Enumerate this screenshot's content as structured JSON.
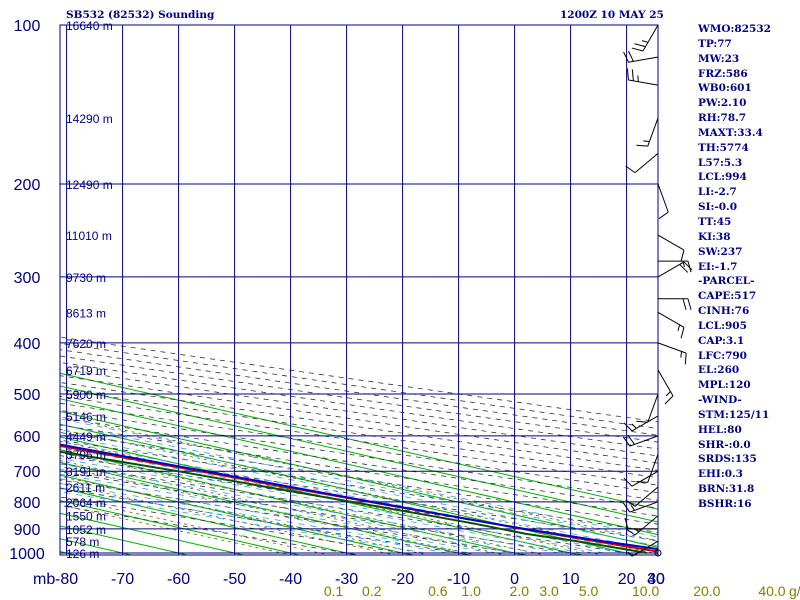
{
  "header": {
    "title": "SB532 (82532) Sounding",
    "time": "1200Z 10 MAY 25"
  },
  "indices": [
    "WMO:82532",
    "TP:77",
    "MW:23",
    "FRZ:586",
    "WB0:601",
    "PW:2.10",
    "RH:78.7",
    "MAXT:33.4",
    "TH:5774",
    "L57:5.3",
    "LCL:994",
    "LI:-2.7",
    "SI:-0.0",
    "TT:45",
    "KI:38",
    "SW:237",
    "EI:-1.7",
    "-PARCEL-",
    "CAPE:517",
    "CINH:76",
    "LCL:905",
    "CAP:3.1",
    "LFC:790",
    "EL:260",
    "MPL:120",
    "-WIND-",
    "STM:125/11",
    "HEL:80",
    "SHR-:0.0",
    "SRDS:135",
    "EHI:0.3",
    "BRN:31.8",
    "BSHR:16"
  ],
  "colors": {
    "frame": "#000080",
    "isotherm": "#00b000",
    "dry_adiabat": "#333333",
    "moist_adiabat": "#3aa0e0",
    "mixing_ratio": "#666600",
    "temperature": "#cc0000",
    "dewpoint": "#005000",
    "parcel": "#0000cc",
    "wind_barb": "#000000"
  },
  "chart_data": {
    "type": "skew-t",
    "title": "SB532 (82532) Sounding",
    "pressure_unit_label": "mb",
    "pressure_ticks": [
      100,
      200,
      300,
      400,
      500,
      600,
      700,
      800,
      900,
      1000
    ],
    "temperature_ticks": [
      -80,
      -70,
      -60,
      -50,
      -40,
      -30,
      -20,
      -10,
      0,
      10,
      20,
      30,
      40
    ],
    "temperature_tick_labels": [
      "-80",
      "-70",
      "-60",
      "-50",
      "-40",
      "-30",
      "-20",
      "-10",
      "0",
      "10",
      "20",
      "30",
      "40"
    ],
    "pressure_range": [
      100,
      1050
    ],
    "temperature_range_at_surface": [
      -80,
      40
    ],
    "height_labels": [
      {
        "p": 100,
        "text": "16640 m"
      },
      {
        "p": 150,
        "text": "14290 m"
      },
      {
        "p": 200,
        "text": "12490 m"
      },
      {
        "p": 250,
        "text": "11010 m"
      },
      {
        "p": 300,
        "text": "9730 m"
      },
      {
        "p": 350,
        "text": "8613 m"
      },
      {
        "p": 400,
        "text": "7620 m"
      },
      {
        "p": 450,
        "text": "6719 m"
      },
      {
        "p": 500,
        "text": "5900 m"
      },
      {
        "p": 550,
        "text": "5146 m"
      },
      {
        "p": 600,
        "text": "4449 m"
      },
      {
        "p": 650,
        "text": "3796 m"
      },
      {
        "p": 700,
        "text": "3191 m"
      },
      {
        "p": 750,
        "text": "2611 m"
      },
      {
        "p": 800,
        "text": "2064 m"
      },
      {
        "p": 850,
        "text": "1550 m"
      },
      {
        "p": 900,
        "text": "1052 m"
      },
      {
        "p": 950,
        "text": "578 m"
      },
      {
        "p": 1000,
        "text": "126 m"
      }
    ],
    "mixing_ratio_values": [
      0.1,
      0.2,
      0.6,
      1.0,
      2.0,
      3.0,
      5.0,
      10.0,
      20.0,
      40.0
    ],
    "mixing_ratio_labels": [
      "0.1",
      "0.2",
      "0.6",
      "1.0",
      "2.0",
      "3.0",
      "5.0",
      "10.0",
      "20.0",
      "40.0"
    ],
    "mixing_ratio_unit": "g/kg",
    "series": [
      {
        "key": "temperature",
        "points": [
          [
            1000,
            27.1
          ],
          [
            950,
            23.6
          ],
          [
            900,
            20.3
          ],
          [
            850,
            17.4
          ],
          [
            800,
            14.2
          ],
          [
            750,
            10.9
          ],
          [
            700,
            8.0
          ],
          [
            650,
            4.5
          ],
          [
            600,
            1.1
          ],
          [
            550,
            -2.4
          ],
          [
            500,
            -6.4
          ],
          [
            450,
            -11.8
          ],
          [
            400,
            -17.0
          ],
          [
            350,
            -23.6
          ],
          [
            300,
            -31.8
          ],
          [
            250,
            -41.4
          ],
          [
            200,
            -52.6
          ],
          [
            150,
            -66.4
          ],
          [
            120,
            -77.0
          ],
          [
            100,
            -78.0
          ]
        ]
      },
      {
        "key": "dewpoint",
        "points": [
          [
            1000,
            23.6
          ],
          [
            950,
            20.4
          ],
          [
            920,
            17.1
          ],
          [
            880,
            15.9
          ],
          [
            850,
            14.2
          ],
          [
            800,
            11.0
          ],
          [
            750,
            7.6
          ],
          [
            700,
            4.1
          ],
          [
            660,
            0.2
          ],
          [
            620,
            -4.2
          ],
          [
            600,
            -5.0
          ],
          [
            580,
            -6.8
          ],
          [
            560,
            -3.8
          ],
          [
            550,
            -6.0
          ],
          [
            545,
            -15.0
          ],
          [
            540,
            -8.0
          ],
          [
            535,
            -14.0
          ],
          [
            530,
            -9.0
          ],
          [
            520,
            -17.0
          ],
          [
            510,
            -9.0
          ],
          [
            500,
            -13.0
          ],
          [
            485,
            -7.0
          ],
          [
            480,
            -14.0
          ],
          [
            475,
            -10.0
          ],
          [
            470,
            -13.0
          ],
          [
            455,
            -14.5
          ],
          [
            450,
            -34.0
          ],
          [
            440,
            -36.0
          ],
          [
            420,
            -38.0
          ],
          [
            410,
            -28.0
          ],
          [
            400,
            -40.0
          ],
          [
            390,
            -31.0
          ],
          [
            385,
            -43.0
          ],
          [
            375,
            -27.0
          ],
          [
            370,
            -41.0
          ],
          [
            360,
            -36.0
          ],
          [
            355,
            -45.0
          ],
          [
            345,
            -40.0
          ],
          [
            340,
            -48.0
          ],
          [
            330,
            -43.0
          ],
          [
            320,
            -49.0
          ],
          [
            300,
            -56.0
          ],
          [
            290,
            -47.0
          ],
          [
            280,
            -51.0
          ],
          [
            270,
            -49.0
          ],
          [
            260,
            -53.0
          ],
          [
            250,
            -54.0
          ],
          [
            220,
            -58.0
          ],
          [
            200,
            -60.0
          ],
          [
            185,
            -65.0
          ],
          [
            170,
            -72.0
          ],
          [
            160,
            -82.0
          ],
          [
            150,
            -80.0
          ],
          [
            135,
            -87.0
          ],
          [
            120,
            -90.0
          ],
          [
            110,
            -92.0
          ]
        ]
      },
      {
        "key": "parcel",
        "points": [
          [
            1000,
            30.5
          ],
          [
            950,
            25.0
          ],
          [
            900,
            20.6
          ],
          [
            850,
            17.6
          ],
          [
            800,
            14.7
          ],
          [
            750,
            11.9
          ],
          [
            700,
            9.0
          ],
          [
            650,
            5.9
          ],
          [
            600,
            2.5
          ],
          [
            550,
            -1.2
          ],
          [
            500,
            -5.4
          ],
          [
            450,
            -10.2
          ],
          [
            400,
            -15.7
          ],
          [
            350,
            -22.3
          ],
          [
            300,
            -30.4
          ],
          [
            250,
            -40.2
          ],
          [
            200,
            -52.7
          ],
          [
            150,
            -68.0
          ],
          [
            120,
            -80.0
          ],
          [
            110,
            -86.0
          ]
        ]
      }
    ],
    "wind_barbs": [
      {
        "p": 100,
        "dir": 210,
        "spd": 25
      },
      {
        "p": 115,
        "dir": 260,
        "spd": 20
      },
      {
        "p": 130,
        "dir": 280,
        "spd": 25
      },
      {
        "p": 150,
        "dir": 200,
        "spd": 15
      },
      {
        "p": 175,
        "dir": 230,
        "spd": 10
      },
      {
        "p": 200,
        "dir": 160,
        "spd": 10
      },
      {
        "p": 250,
        "dir": 120,
        "spd": 10
      },
      {
        "p": 280,
        "dir": 90,
        "spd": 15
      },
      {
        "p": 300,
        "dir": 60,
        "spd": 20
      },
      {
        "p": 330,
        "dir": 90,
        "spd": 20
      },
      {
        "p": 350,
        "dir": 120,
        "spd": 15
      },
      {
        "p": 400,
        "dir": 110,
        "spd": 15
      },
      {
        "p": 450,
        "dir": 150,
        "spd": 15
      },
      {
        "p": 500,
        "dir": 200,
        "spd": 10
      },
      {
        "p": 550,
        "dir": 240,
        "spd": 15
      },
      {
        "p": 600,
        "dir": 250,
        "spd": 20
      },
      {
        "p": 650,
        "dir": 200,
        "spd": 10
      },
      {
        "p": 700,
        "dir": 240,
        "spd": 10
      },
      {
        "p": 750,
        "dir": 230,
        "spd": 10
      },
      {
        "p": 800,
        "dir": 250,
        "spd": 15
      },
      {
        "p": 850,
        "dir": 230,
        "spd": 15
      },
      {
        "p": 900,
        "dir": 270,
        "spd": 10
      },
      {
        "p": 950,
        "dir": 240,
        "spd": 5
      },
      {
        "p": 1000,
        "dir": 180,
        "spd": 0
      }
    ]
  }
}
